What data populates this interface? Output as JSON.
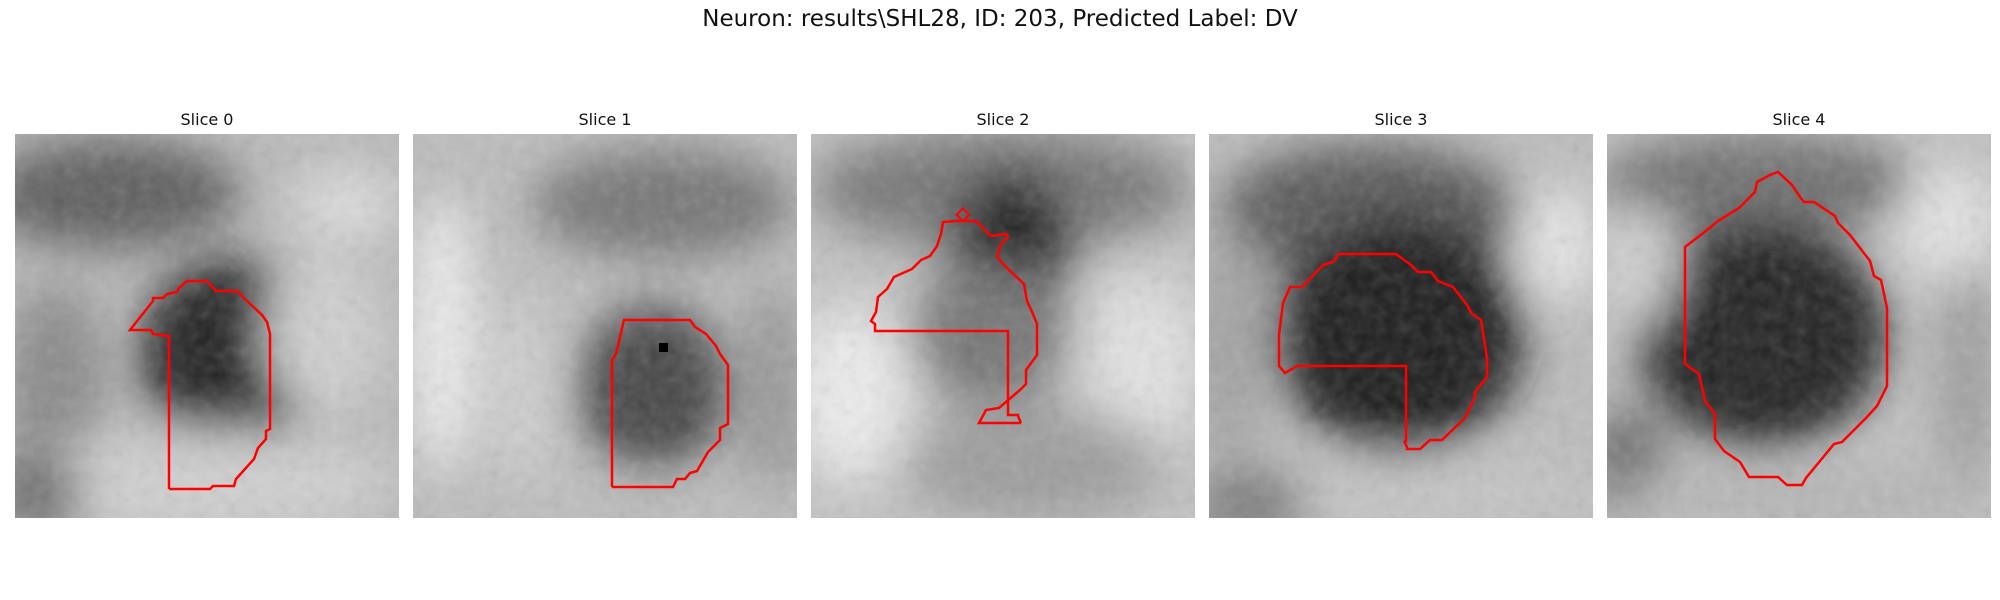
{
  "figure": {
    "title": "Neuron: results\\SHL28, ID: 203, Predicted Label: DV"
  },
  "colors": {
    "contour": "#ff0000",
    "background": "#ffffff"
  },
  "panels": [
    {
      "title": "Slice 0"
    },
    {
      "title": "Slice 1"
    },
    {
      "title": "Slice 2"
    },
    {
      "title": "Slice 3"
    },
    {
      "title": "Slice 4"
    }
  ]
}
